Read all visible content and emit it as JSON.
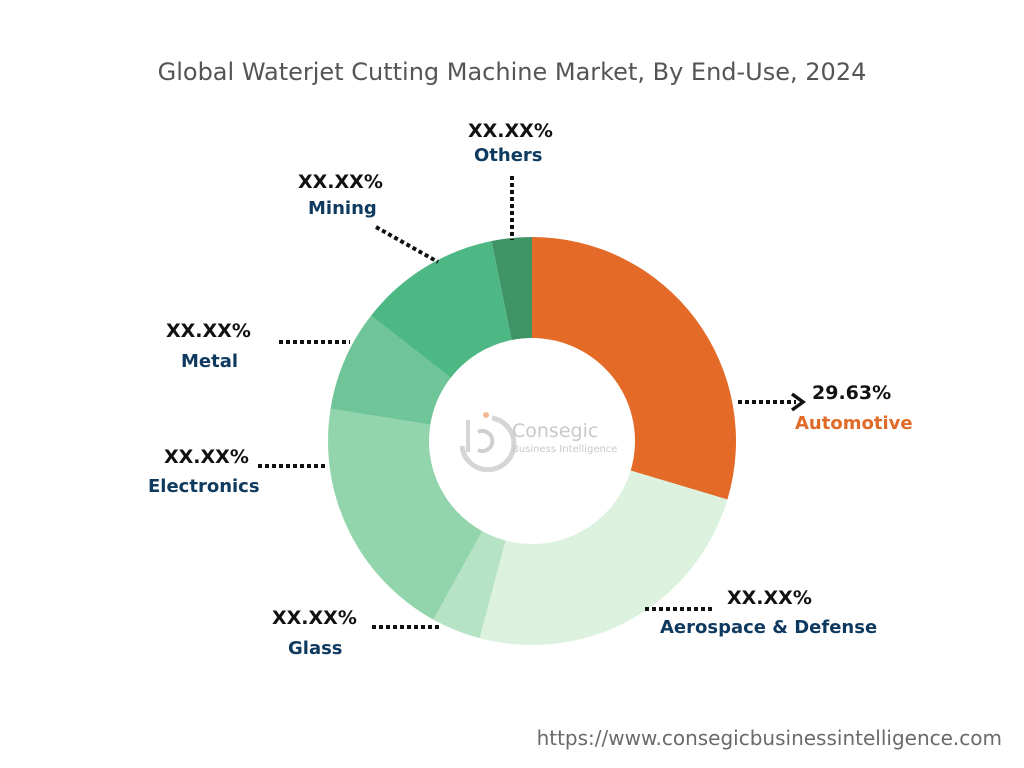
{
  "chart_data": {
    "type": "pie",
    "title": "Global Waterjet Cutting Machine Market, By End-Use, 2024",
    "categories": [
      "Automotive",
      "Aerospace & Defense",
      "Glass",
      "Electronics",
      "Metal",
      "Mining",
      "Others"
    ],
    "values": [
      29.63,
      24.5,
      3.9,
      19.5,
      8.0,
      11.3,
      3.17
    ],
    "labels": [
      "29.63%",
      "XX.XX%",
      "XX.XX%",
      "XX.XX%",
      "XX.XX%",
      "XX.XX%",
      "XX.XX%"
    ],
    "colors": [
      "#e36a27",
      "#dcf2de",
      "#b6e3c3",
      "#92d5ad",
      "#6fc598",
      "#4db883",
      "#3f9466"
    ],
    "donut": true,
    "legend": "none"
  },
  "logo": {
    "name": "Consegic",
    "tagline": "Business Intelligence"
  },
  "source": "https://www.consegicbusinessintelligence.com"
}
